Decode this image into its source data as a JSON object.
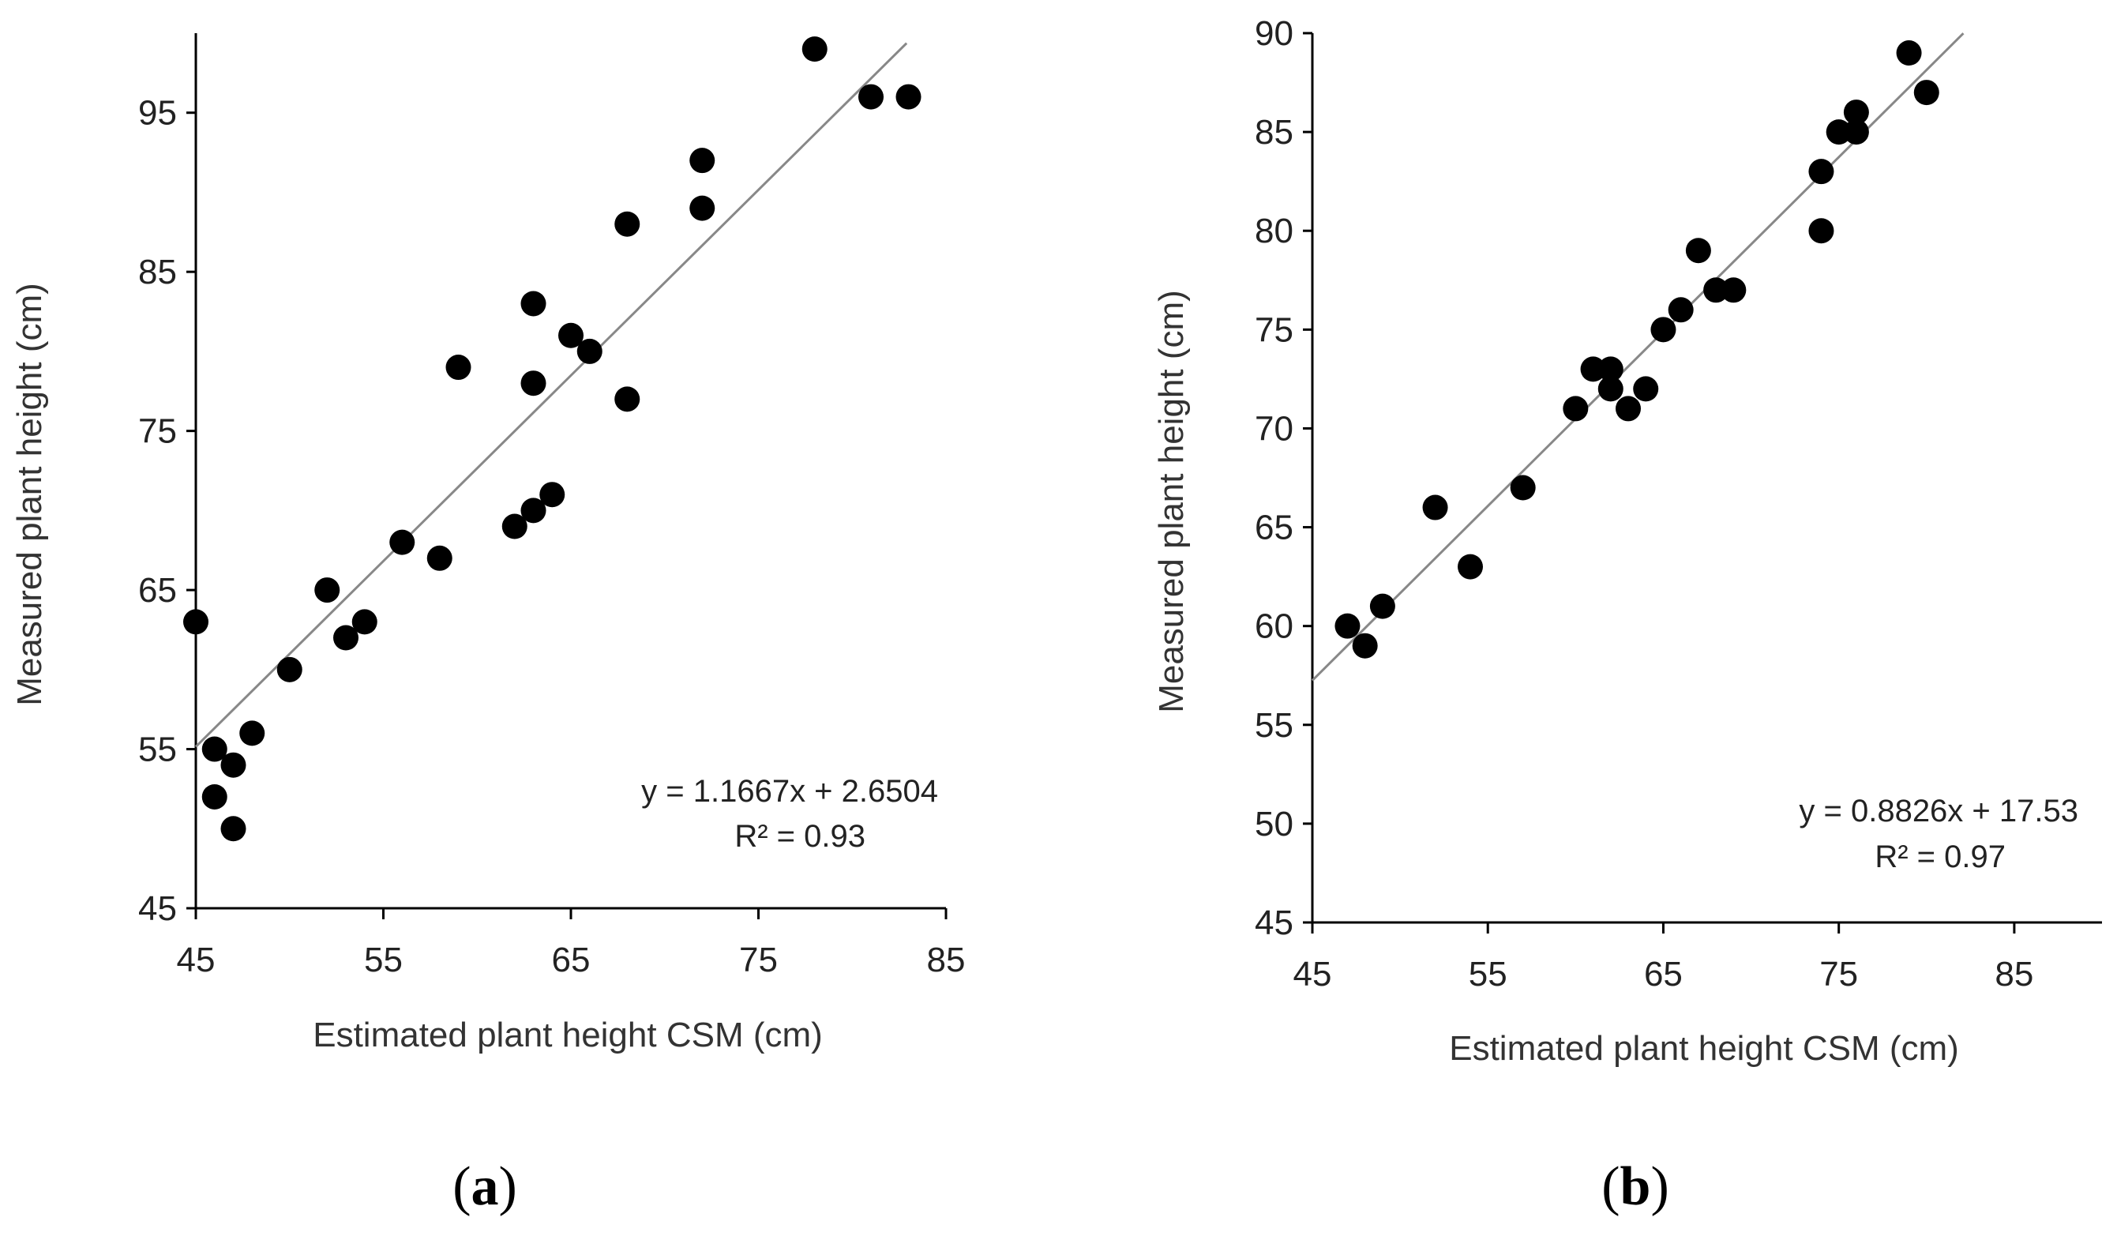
{
  "chart_data": [
    {
      "type": "scatter",
      "panel_label": "a",
      "xlabel": "Estimated plant height CSM (cm)",
      "ylabel": "Measured plant height (cm)",
      "xlim": [
        45,
        85
      ],
      "ylim": [
        45,
        100
      ],
      "xticks": [
        45,
        55,
        65,
        75,
        85
      ],
      "yticks": [
        45,
        55,
        65,
        75,
        85,
        95
      ],
      "grid": false,
      "legend": "none",
      "equation": "y = 1.1667x + 2.6504",
      "r2": "R² = 0.93",
      "trendline": {
        "slope": 1.1667,
        "intercept": 2.6504,
        "x_range": [
          45,
          82.9
        ]
      },
      "points": [
        {
          "x": 45,
          "y": 63
        },
        {
          "x": 46,
          "y": 55
        },
        {
          "x": 46,
          "y": 52
        },
        {
          "x": 47,
          "y": 54
        },
        {
          "x": 47,
          "y": 50
        },
        {
          "x": 48,
          "y": 56
        },
        {
          "x": 50,
          "y": 60
        },
        {
          "x": 52,
          "y": 65
        },
        {
          "x": 53,
          "y": 62
        },
        {
          "x": 54,
          "y": 63
        },
        {
          "x": 56,
          "y": 68
        },
        {
          "x": 58,
          "y": 67
        },
        {
          "x": 59,
          "y": 79
        },
        {
          "x": 62,
          "y": 69
        },
        {
          "x": 63,
          "y": 70
        },
        {
          "x": 63,
          "y": 83
        },
        {
          "x": 63,
          "y": 78
        },
        {
          "x": 64,
          "y": 71
        },
        {
          "x": 65,
          "y": 81
        },
        {
          "x": 66,
          "y": 80
        },
        {
          "x": 68,
          "y": 88
        },
        {
          "x": 68,
          "y": 77
        },
        {
          "x": 72,
          "y": 92
        },
        {
          "x": 72,
          "y": 89
        },
        {
          "x": 78,
          "y": 99
        },
        {
          "x": 81,
          "y": 96
        },
        {
          "x": 83,
          "y": 96
        }
      ]
    },
    {
      "type": "scatter",
      "panel_label": "b",
      "xlabel": "Estimated plant height CSM (cm)",
      "ylabel": "Measured plant height (cm)",
      "xlim": [
        45,
        90
      ],
      "ylim": [
        45,
        90
      ],
      "xticks": [
        45,
        55,
        65,
        75,
        85
      ],
      "yticks": [
        45,
        50,
        55,
        60,
        65,
        70,
        75,
        80,
        85,
        90
      ],
      "grid": false,
      "legend": "none",
      "equation": "y = 0.8826x + 17.53",
      "r2": "R² = 0.97",
      "trendline": {
        "slope": 0.8826,
        "intercept": 17.53,
        "x_range": [
          45,
          82.1
        ]
      },
      "points": [
        {
          "x": 47,
          "y": 60
        },
        {
          "x": 48,
          "y": 59
        },
        {
          "x": 49,
          "y": 61
        },
        {
          "x": 52,
          "y": 66
        },
        {
          "x": 54,
          "y": 63
        },
        {
          "x": 57,
          "y": 67
        },
        {
          "x": 60,
          "y": 71
        },
        {
          "x": 61,
          "y": 73
        },
        {
          "x": 62,
          "y": 73
        },
        {
          "x": 62,
          "y": 72
        },
        {
          "x": 63,
          "y": 71
        },
        {
          "x": 64,
          "y": 72
        },
        {
          "x": 65,
          "y": 75
        },
        {
          "x": 66,
          "y": 76
        },
        {
          "x": 67,
          "y": 79
        },
        {
          "x": 68,
          "y": 77
        },
        {
          "x": 69,
          "y": 77
        },
        {
          "x": 74,
          "y": 83
        },
        {
          "x": 74,
          "y": 80
        },
        {
          "x": 75,
          "y": 85
        },
        {
          "x": 76,
          "y": 85
        },
        {
          "x": 76,
          "y": 86
        },
        {
          "x": 79,
          "y": 89
        },
        {
          "x": 80,
          "y": 87
        }
      ]
    }
  ]
}
